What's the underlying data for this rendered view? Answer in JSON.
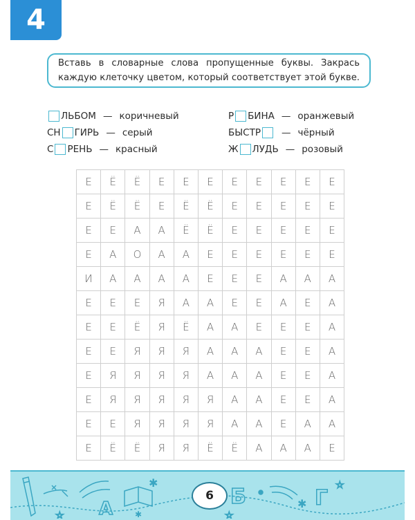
{
  "exercise": {
    "number": "4",
    "accent_color": "#2b8fd6",
    "frame_color": "#4bb8d0"
  },
  "task": {
    "text": "Вставь в словарные слова пропущенные буквы. Закрась каждую клеточку цветом, который соответствует этой букве."
  },
  "words": {
    "left": [
      {
        "before": "",
        "after": "ЛЬБОМ",
        "color": "коричневый"
      },
      {
        "before": "СН",
        "after": "ГИРЬ",
        "color": "серый"
      },
      {
        "before": "С",
        "after": "РЕНЬ",
        "color": "красный"
      }
    ],
    "right": [
      {
        "before": "Р",
        "after": "БИНА",
        "color": "оранжевый"
      },
      {
        "before": "БЫСТР",
        "after": "",
        "color": "чёрный"
      },
      {
        "before": "Ж",
        "after": "ЛУДЬ",
        "color": "розовый"
      }
    ],
    "dash": "—"
  },
  "grid": {
    "rows": [
      [
        "Е",
        "Ё",
        "Ё",
        "Е",
        "Е",
        "Е",
        "Е",
        "Е",
        "Е",
        "Е",
        "Е"
      ],
      [
        "Е",
        "Ё",
        "Ё",
        "Е",
        "Ё",
        "Ё",
        "Е",
        "Е",
        "Е",
        "Е",
        "Е"
      ],
      [
        "Е",
        "Е",
        "А",
        "А",
        "Ё",
        "Ё",
        "Е",
        "Е",
        "Е",
        "Е",
        "Е"
      ],
      [
        "Е",
        "А",
        "О",
        "А",
        "А",
        "Е",
        "Е",
        "Е",
        "Е",
        "Е",
        "Е"
      ],
      [
        "И",
        "А",
        "А",
        "А",
        "А",
        "Е",
        "Е",
        "Е",
        "А",
        "А",
        "А"
      ],
      [
        "Е",
        "Е",
        "Е",
        "Я",
        "А",
        "А",
        "Е",
        "Е",
        "А",
        "Е",
        "А"
      ],
      [
        "Е",
        "Е",
        "Ё",
        "Я",
        "Ё",
        "А",
        "А",
        "Е",
        "Е",
        "Е",
        "А"
      ],
      [
        "Е",
        "Е",
        "Я",
        "Я",
        "Я",
        "А",
        "А",
        "А",
        "Е",
        "Е",
        "А"
      ],
      [
        "Е",
        "Я",
        "Я",
        "Я",
        "Я",
        "А",
        "А",
        "А",
        "Е",
        "Е",
        "А"
      ],
      [
        "Е",
        "Я",
        "Я",
        "Я",
        "Я",
        "Я",
        "А",
        "А",
        "Е",
        "Е",
        "А"
      ],
      [
        "Е",
        "Е",
        "Я",
        "Я",
        "Я",
        "Я",
        "А",
        "А",
        "Е",
        "А",
        "А"
      ],
      [
        "Е",
        "Ё",
        "Ё",
        "Я",
        "Я",
        "Ё",
        "Ё",
        "А",
        "А",
        "А",
        "Е"
      ]
    ]
  },
  "footer": {
    "page_number": "6",
    "band_color": "#a9e3ec",
    "decorations": [
      "pencil-icon",
      "math-symbols-icon",
      "letter-a-icon",
      "open-book-icon",
      "snowflake-icon",
      "letter-b-icon",
      "letter-g-icon",
      "star-icon"
    ],
    "decor_letters": {
      "a": "А",
      "b": "Б",
      "g": "Г"
    }
  }
}
